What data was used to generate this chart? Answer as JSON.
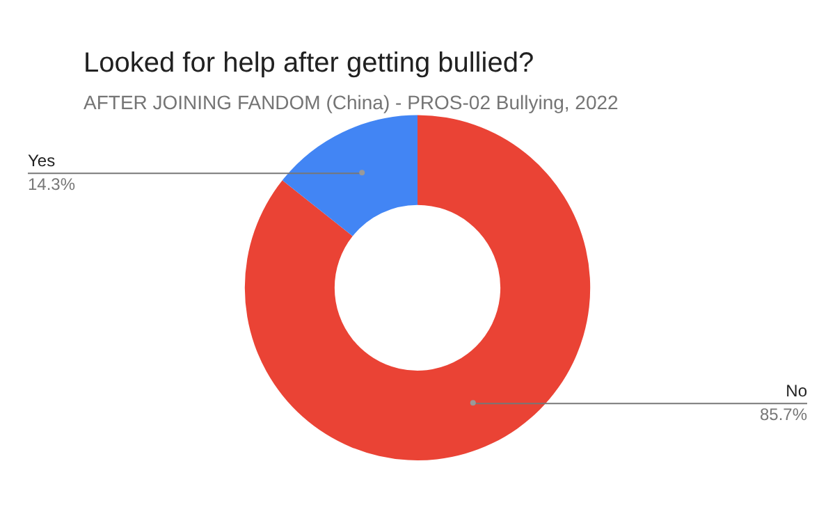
{
  "chart_data": {
    "type": "donut",
    "title": "Looked for help after getting bullied?",
    "subtitle": "AFTER JOINING FANDOM (China) - PROS-02 Bullying, 2022",
    "categories": [
      "No",
      "Yes"
    ],
    "values": [
      85.7,
      14.3
    ],
    "colors": [
      "#ea4335",
      "#4285f4"
    ],
    "value_labels": [
      "85.7%",
      "14.3%"
    ],
    "legend": false
  }
}
